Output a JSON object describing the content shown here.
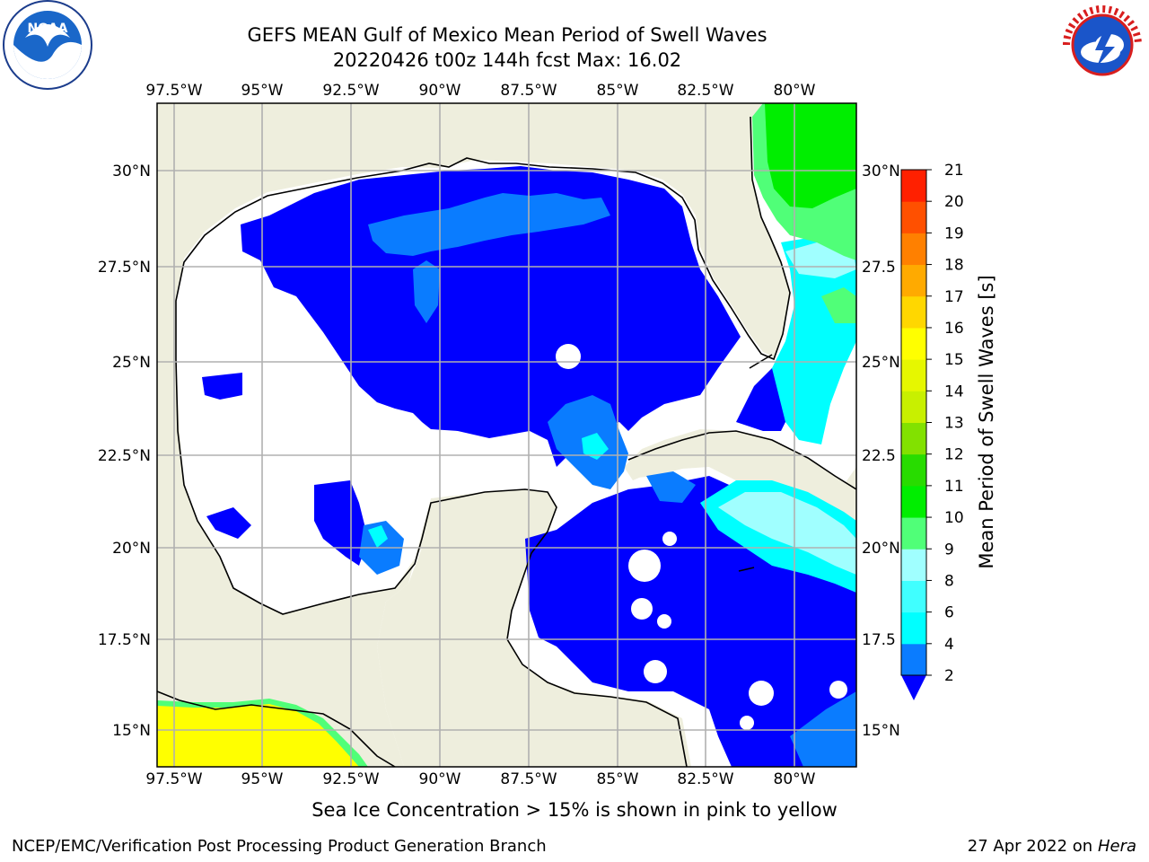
{
  "title": {
    "line1": "GEFS MEAN Gulf of Mexico Mean Period of Swell Waves",
    "line2": "20220426 t00z 144h fcst   Max: 16.02"
  },
  "logos": {
    "left": "noaa-logo",
    "right": "national-weather-service-logo"
  },
  "map": {
    "region": "Gulf of Mexico",
    "lon_ticks_labels": [
      "97.5°W",
      "95°W",
      "92.5°W",
      "90°W",
      "87.5°W",
      "85°W",
      "82.5°W",
      "80°W"
    ],
    "lat_ticks_labels": [
      "30°N",
      "27.5°N",
      "25°N",
      "22.5°N",
      "20°N",
      "17.5°N",
      "15°N"
    ],
    "lat_right_labels": [
      "30°N",
      "27.5",
      "25°N",
      "22.5",
      "20°N",
      "17.5",
      "15°N"
    ],
    "lon_range": [
      -98,
      -78.2
    ],
    "lat_range": [
      14,
      31.6
    ],
    "grid": true,
    "colors": {
      "land": "#eeeedd",
      "ocean_low": "#0000ff",
      "ocean_mid": "#0a7cff",
      "ocean_cyan": "#00ffff",
      "sea_ice": "#ffff00"
    }
  },
  "colorbar": {
    "label": "Mean Period of Swell Waves [s]",
    "tick_labels": [
      "21",
      "20",
      "19",
      "18",
      "17",
      "16",
      "15",
      "14",
      "13",
      "12",
      "11",
      "10",
      "9",
      "8",
      "6",
      "4",
      "2"
    ],
    "levels": [
      2,
      4,
      6,
      8,
      9,
      10,
      11,
      12,
      13,
      14,
      15,
      16,
      17,
      18,
      19,
      20,
      21
    ],
    "colors": [
      "#0a7cff",
      "#00ffff",
      "#40ffff",
      "#a0ffff",
      "#50ff78",
      "#00ee00",
      "#28dc00",
      "#82e100",
      "#c8f000",
      "#e6f700",
      "#ffff00",
      "#ffd700",
      "#ffaa00",
      "#ff8000",
      "#ff5000",
      "#ff2000"
    ],
    "extend_color": "#0000ff"
  },
  "bottom_note": "Sea Ice Concentration > 15% is shown in pink to yellow",
  "footer": {
    "left": "NCEP/EMC/Verification Post Processing Product Generation Branch",
    "right_date": "27 Apr 2022 on ",
    "right_host": "Hera"
  }
}
